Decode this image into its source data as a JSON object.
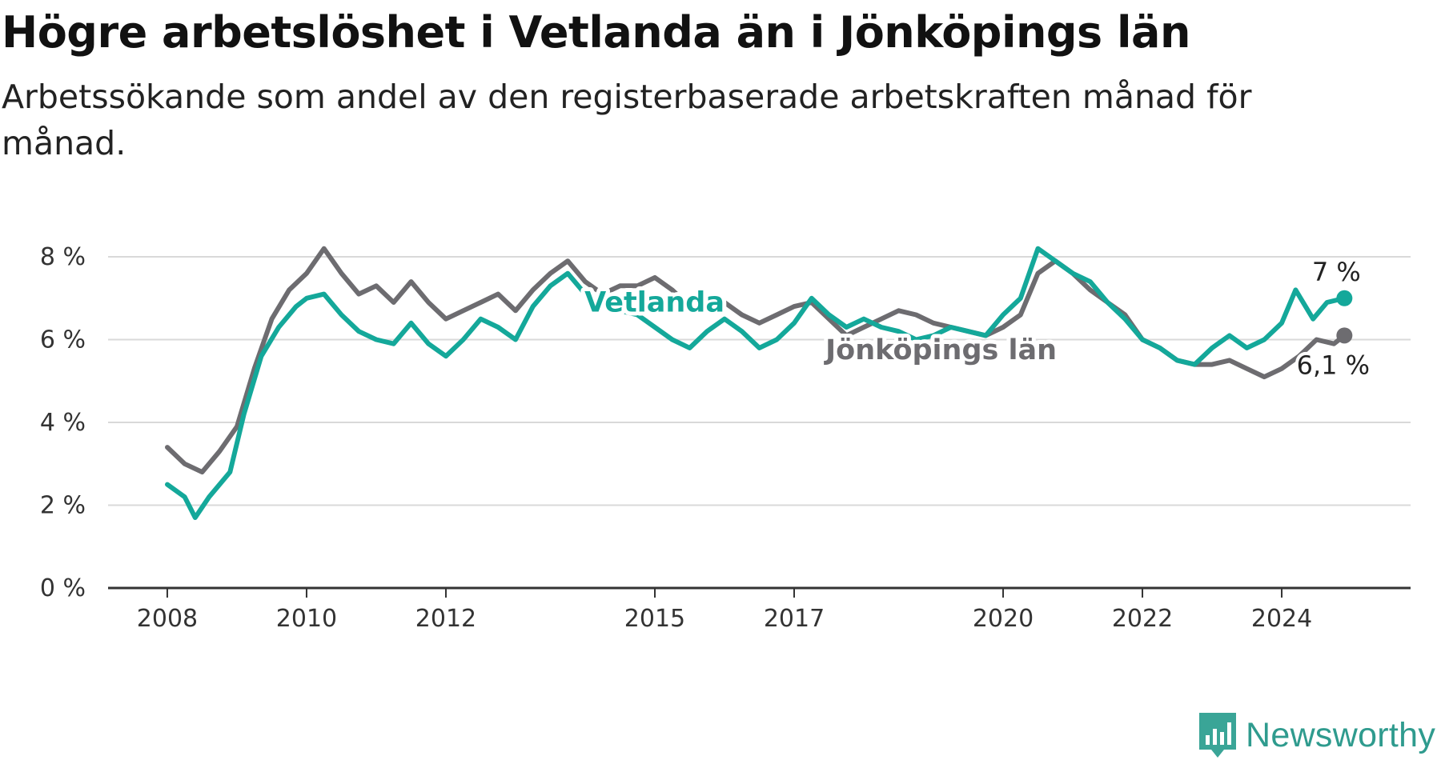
{
  "title": "Högre arbetslöshet i Vetlanda än i Jönköpings län",
  "subtitle": "Arbetssökande som andel av den registerbaserade arbetskraften månad för månad.",
  "brand": {
    "name": "Newsworthy",
    "icon": "newsworthy-logo-icon",
    "color": "#2f9b8e"
  },
  "chart_data": {
    "type": "line",
    "title": "Högre arbetslöshet i Vetlanda än i Jönköpings län",
    "subtitle": "Arbetssökande som andel av den registerbaserade arbetskraften månad för månad.",
    "xlabel": "",
    "ylabel": "",
    "ylim": [
      0,
      8.6
    ],
    "xlim": [
      2007.15,
      2025.85
    ],
    "grid": true,
    "legend": "inline labels",
    "x_ticks": [
      2008,
      2010,
      2012,
      2015,
      2017,
      2020,
      2022,
      2024
    ],
    "y_ticks": [
      0,
      2,
      4,
      6,
      8
    ],
    "y_tick_labels": [
      "0 %",
      "2 %",
      "4 %",
      "6 %",
      "8 %"
    ],
    "series": [
      {
        "name": "Jönköpings län",
        "color": "#6d6c70",
        "end_label": "6,1 %",
        "points": [
          [
            2008.0,
            3.4
          ],
          [
            2008.25,
            3.0
          ],
          [
            2008.5,
            2.8
          ],
          [
            2008.75,
            3.3
          ],
          [
            2009.0,
            3.9
          ],
          [
            2009.25,
            5.3
          ],
          [
            2009.5,
            6.5
          ],
          [
            2009.75,
            7.2
          ],
          [
            2010.0,
            7.6
          ],
          [
            2010.25,
            8.2
          ],
          [
            2010.5,
            7.6
          ],
          [
            2010.75,
            7.1
          ],
          [
            2011.0,
            7.3
          ],
          [
            2011.25,
            6.9
          ],
          [
            2011.5,
            7.4
          ],
          [
            2011.75,
            6.9
          ],
          [
            2012.0,
            6.5
          ],
          [
            2012.25,
            6.7
          ],
          [
            2012.5,
            6.9
          ],
          [
            2012.75,
            7.1
          ],
          [
            2013.0,
            6.7
          ],
          [
            2013.25,
            7.2
          ],
          [
            2013.5,
            7.6
          ],
          [
            2013.75,
            7.9
          ],
          [
            2014.0,
            7.4
          ],
          [
            2014.25,
            7.1
          ],
          [
            2014.5,
            7.3
          ],
          [
            2014.75,
            7.3
          ],
          [
            2015.0,
            7.5
          ],
          [
            2015.25,
            7.2
          ],
          [
            2015.5,
            6.8
          ],
          [
            2015.75,
            6.7
          ],
          [
            2016.0,
            6.9
          ],
          [
            2016.25,
            6.6
          ],
          [
            2016.5,
            6.4
          ],
          [
            2016.75,
            6.6
          ],
          [
            2017.0,
            6.8
          ],
          [
            2017.25,
            6.9
          ],
          [
            2017.5,
            6.5
          ],
          [
            2017.75,
            6.1
          ],
          [
            2018.0,
            6.3
          ],
          [
            2018.25,
            6.5
          ],
          [
            2018.5,
            6.7
          ],
          [
            2018.75,
            6.6
          ],
          [
            2019.0,
            6.4
          ],
          [
            2019.25,
            6.3
          ],
          [
            2019.5,
            6.2
          ],
          [
            2019.75,
            6.1
          ],
          [
            2020.0,
            6.3
          ],
          [
            2020.25,
            6.6
          ],
          [
            2020.5,
            7.6
          ],
          [
            2020.75,
            7.9
          ],
          [
            2021.0,
            7.6
          ],
          [
            2021.25,
            7.2
          ],
          [
            2021.5,
            6.9
          ],
          [
            2021.75,
            6.6
          ],
          [
            2022.0,
            6.0
          ],
          [
            2022.25,
            5.8
          ],
          [
            2022.5,
            5.5
          ],
          [
            2022.75,
            5.4
          ],
          [
            2023.0,
            5.4
          ],
          [
            2023.25,
            5.5
          ],
          [
            2023.5,
            5.3
          ],
          [
            2023.75,
            5.1
          ],
          [
            2024.0,
            5.3
          ],
          [
            2024.25,
            5.6
          ],
          [
            2024.5,
            6.0
          ],
          [
            2024.75,
            5.9
          ],
          [
            2024.9,
            6.1
          ]
        ]
      },
      {
        "name": "Vetlanda",
        "color": "#14a89a",
        "end_label": "7 %",
        "points": [
          [
            2008.0,
            2.5
          ],
          [
            2008.25,
            2.2
          ],
          [
            2008.4,
            1.7
          ],
          [
            2008.6,
            2.2
          ],
          [
            2008.9,
            2.8
          ],
          [
            2009.1,
            4.2
          ],
          [
            2009.35,
            5.6
          ],
          [
            2009.6,
            6.3
          ],
          [
            2009.85,
            6.8
          ],
          [
            2010.0,
            7.0
          ],
          [
            2010.25,
            7.1
          ],
          [
            2010.5,
            6.6
          ],
          [
            2010.75,
            6.2
          ],
          [
            2011.0,
            6.0
          ],
          [
            2011.25,
            5.9
          ],
          [
            2011.5,
            6.4
          ],
          [
            2011.75,
            5.9
          ],
          [
            2012.0,
            5.6
          ],
          [
            2012.25,
            6.0
          ],
          [
            2012.5,
            6.5
          ],
          [
            2012.75,
            6.3
          ],
          [
            2013.0,
            6.0
          ],
          [
            2013.25,
            6.8
          ],
          [
            2013.5,
            7.3
          ],
          [
            2013.75,
            7.6
          ],
          [
            2014.0,
            7.1
          ],
          [
            2014.25,
            6.8
          ],
          [
            2014.5,
            6.7
          ],
          [
            2014.75,
            6.6
          ],
          [
            2015.0,
            6.3
          ],
          [
            2015.25,
            6.0
          ],
          [
            2015.5,
            5.8
          ],
          [
            2015.75,
            6.2
          ],
          [
            2016.0,
            6.5
          ],
          [
            2016.25,
            6.2
          ],
          [
            2016.5,
            5.8
          ],
          [
            2016.75,
            6.0
          ],
          [
            2017.0,
            6.4
          ],
          [
            2017.25,
            7.0
          ],
          [
            2017.5,
            6.6
          ],
          [
            2017.75,
            6.3
          ],
          [
            2018.0,
            6.5
          ],
          [
            2018.25,
            6.3
          ],
          [
            2018.5,
            6.2
          ],
          [
            2018.75,
            6.0
          ],
          [
            2019.0,
            6.1
          ],
          [
            2019.25,
            6.3
          ],
          [
            2019.5,
            6.2
          ],
          [
            2019.75,
            6.1
          ],
          [
            2020.0,
            6.6
          ],
          [
            2020.25,
            7.0
          ],
          [
            2020.5,
            8.2
          ],
          [
            2020.75,
            7.9
          ],
          [
            2021.0,
            7.6
          ],
          [
            2021.25,
            7.4
          ],
          [
            2021.5,
            6.9
          ],
          [
            2021.75,
            6.5
          ],
          [
            2022.0,
            6.0
          ],
          [
            2022.25,
            5.8
          ],
          [
            2022.5,
            5.5
          ],
          [
            2022.75,
            5.4
          ],
          [
            2023.0,
            5.8
          ],
          [
            2023.25,
            6.1
          ],
          [
            2023.5,
            5.8
          ],
          [
            2023.75,
            6.0
          ],
          [
            2024.0,
            6.4
          ],
          [
            2024.2,
            7.2
          ],
          [
            2024.45,
            6.5
          ],
          [
            2024.65,
            6.9
          ],
          [
            2024.9,
            7.0
          ]
        ]
      }
    ]
  }
}
